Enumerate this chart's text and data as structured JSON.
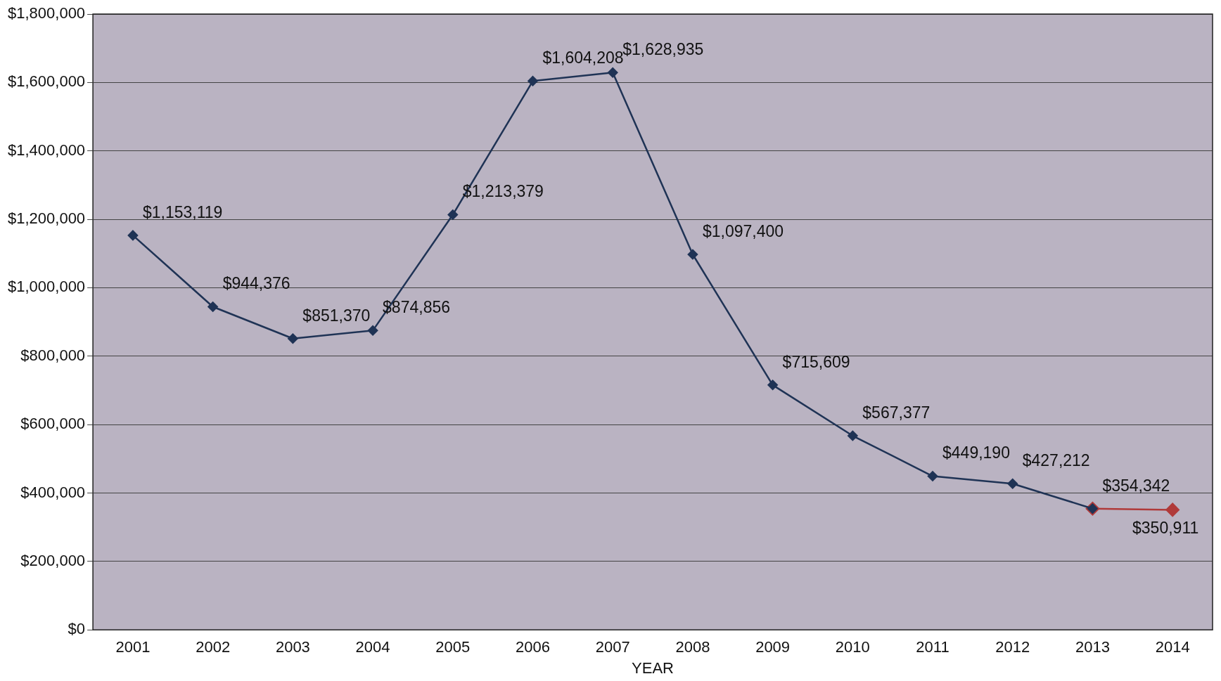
{
  "chart_data": {
    "type": "line",
    "xlabel": "YEAR",
    "categories": [
      "2001",
      "2002",
      "2003",
      "2004",
      "2005",
      "2006",
      "2007",
      "2008",
      "2009",
      "2010",
      "2011",
      "2012",
      "2013",
      "2014"
    ],
    "series": [
      {
        "color": "#1f3355",
        "values": [
          1153119,
          944376,
          851370,
          874856,
          1213379,
          1604208,
          1628935,
          1097400,
          715609,
          567377,
          449190,
          427212,
          354342,
          null
        ],
        "value_labels": [
          "$1,153,119",
          "$944,376",
          "$851,370",
          "$874,856",
          "$1,213,379",
          "$1,604,208",
          "$1,628,935",
          "$1,097,400",
          "$715,609",
          "$567,377",
          "$449,190",
          "$427,212",
          "$354,342",
          null
        ]
      },
      {
        "color": "#b03a3a",
        "values": [
          null,
          null,
          null,
          null,
          null,
          null,
          null,
          null,
          null,
          null,
          null,
          null,
          354342,
          350911
        ],
        "value_labels": [
          null,
          null,
          null,
          null,
          null,
          null,
          null,
          null,
          null,
          null,
          null,
          null,
          null,
          "$350,911"
        ]
      }
    ],
    "ylim": [
      0,
      1800000
    ],
    "yticks": [
      {
        "value": 0,
        "label": "$0"
      },
      {
        "value": 200000,
        "label": "$200,000"
      },
      {
        "value": 400000,
        "label": "$400,000"
      },
      {
        "value": 600000,
        "label": "$600,000"
      },
      {
        "value": 800000,
        "label": "$800,000"
      },
      {
        "value": 1000000,
        "label": "$1,000,000"
      },
      {
        "value": 1200000,
        "label": "$1,200,000"
      },
      {
        "value": 1400000,
        "label": "$1,400,000"
      },
      {
        "value": 1600000,
        "label": "$1,600,000"
      },
      {
        "value": 1800000,
        "label": "$1,800,000"
      }
    ],
    "grid": "y",
    "legend": false,
    "marker": "diamond",
    "line_style": "solid"
  }
}
